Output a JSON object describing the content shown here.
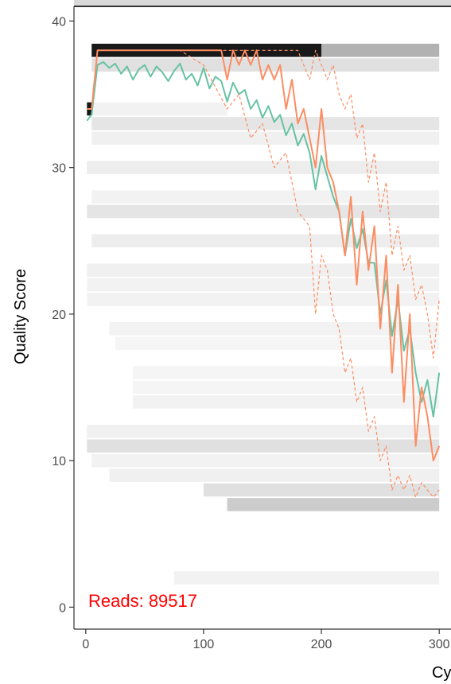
{
  "chart_data": {
    "type": "line",
    "title": "",
    "xlabel": "Cy",
    "ylabel": "Quality Score",
    "xlim": [
      -10,
      310
    ],
    "ylim": [
      -1.5,
      41
    ],
    "x_ticks": [
      0,
      100,
      200,
      300
    ],
    "x_tick_labels": [
      "0",
      "100",
      "200",
      "300"
    ],
    "y_ticks": [
      0,
      10,
      20,
      30,
      40
    ],
    "y_tick_labels": [
      "0",
      "10",
      "20",
      "30",
      "40"
    ],
    "grid": false,
    "legend": "none",
    "annotation": {
      "text": "Reads:  89517",
      "color": "#ff0000",
      "x": 0,
      "y": 0
    },
    "colors": {
      "mean": "#66c2a5",
      "median": "#fc8d62",
      "quartile": "#fc8d62",
      "heatmap": "#000000",
      "panel_border": "#333333",
      "strip": "#d9d9d9"
    },
    "series": [
      {
        "name": "",
        "role": "mean",
        "style": "solid",
        "x": [
          1,
          5,
          10,
          15,
          20,
          25,
          30,
          35,
          40,
          45,
          50,
          55,
          60,
          65,
          70,
          75,
          80,
          85,
          90,
          95,
          100,
          105,
          110,
          115,
          120,
          125,
          130,
          135,
          140,
          145,
          150,
          155,
          160,
          165,
          170,
          175,
          180,
          185,
          190,
          195,
          200,
          205,
          210,
          215,
          220,
          225,
          230,
          235,
          240,
          245,
          250,
          255,
          260,
          265,
          270,
          275,
          280,
          285,
          290,
          295,
          300
        ],
        "y": [
          33.2,
          33.6,
          37.0,
          37.2,
          36.8,
          37.1,
          36.4,
          36.9,
          36.0,
          36.7,
          37.0,
          36.2,
          36.9,
          36.5,
          35.9,
          36.6,
          37.1,
          36.0,
          36.4,
          35.6,
          36.8,
          35.4,
          36.2,
          35.9,
          34.5,
          35.8,
          35.0,
          35.3,
          34.0,
          34.6,
          33.4,
          34.2,
          33.1,
          33.6,
          32.2,
          33.0,
          31.5,
          32.3,
          31.0,
          28.5,
          30.8,
          29.4,
          28.0,
          27.0,
          24.0,
          26.5,
          24.5,
          25.8,
          23.5,
          23.5,
          20.0,
          22.3,
          18.5,
          21.0,
          17.5,
          19.0,
          16.0,
          14.0,
          15.5,
          13.0,
          16.0
        ]
      },
      {
        "name": "",
        "role": "median",
        "style": "solid",
        "x": [
          1,
          5,
          10,
          15,
          20,
          25,
          30,
          35,
          40,
          45,
          50,
          55,
          60,
          65,
          70,
          75,
          80,
          85,
          90,
          95,
          100,
          105,
          110,
          115,
          120,
          125,
          130,
          135,
          140,
          145,
          150,
          155,
          160,
          165,
          170,
          175,
          180,
          185,
          190,
          195,
          200,
          205,
          210,
          215,
          220,
          225,
          230,
          235,
          240,
          245,
          250,
          255,
          260,
          265,
          270,
          275,
          280,
          285,
          290,
          295,
          300
        ],
        "y": [
          34.0,
          34.0,
          38.0,
          38.0,
          38.0,
          38.0,
          38.0,
          38.0,
          38.0,
          38.0,
          38.0,
          38.0,
          38.0,
          38.0,
          38.0,
          38.0,
          38.0,
          38.0,
          38.0,
          38.0,
          38.0,
          38.0,
          38.0,
          38.0,
          36.0,
          38.0,
          37.0,
          38.0,
          37.0,
          38.0,
          36.0,
          37.0,
          36.0,
          37.0,
          34.0,
          36.0,
          33.0,
          34.0,
          32.0,
          30.0,
          34.0,
          30.0,
          29.0,
          27.0,
          24.0,
          28.0,
          22.0,
          27.0,
          23.0,
          26.0,
          19.0,
          24.0,
          16.0,
          22.0,
          14.0,
          20.0,
          11.0,
          15.0,
          13.0,
          10.0,
          11.0
        ]
      },
      {
        "name": "",
        "role": "quartile-upper",
        "style": "dashed",
        "x": [
          1,
          5,
          10,
          20,
          40,
          60,
          80,
          100,
          120,
          140,
          160,
          180,
          190,
          195,
          200,
          205,
          210,
          215,
          220,
          225,
          230,
          235,
          240,
          245,
          250,
          255,
          260,
          265,
          270,
          275,
          280,
          285,
          290,
          295,
          300
        ],
        "y": [
          34.0,
          34.0,
          38.0,
          38.0,
          38.0,
          38.0,
          38.0,
          38.0,
          38.0,
          38.0,
          38.0,
          38.0,
          36.0,
          38.0,
          37.0,
          36.0,
          37.0,
          35.0,
          34.0,
          35.0,
          32.0,
          33.0,
          29.0,
          31.0,
          27.0,
          29.0,
          24.0,
          26.0,
          23.0,
          24.0,
          21.0,
          22.0,
          20.0,
          17.0,
          21.0
        ]
      },
      {
        "name": "",
        "role": "quartile-lower",
        "style": "dashed",
        "x": [
          1,
          5,
          10,
          20,
          40,
          60,
          80,
          100,
          120,
          130,
          140,
          150,
          160,
          170,
          180,
          190,
          195,
          200,
          205,
          210,
          215,
          220,
          225,
          230,
          235,
          240,
          245,
          250,
          255,
          260,
          265,
          270,
          275,
          280,
          285,
          290,
          295,
          300
        ],
        "y": [
          34.0,
          34.0,
          38.0,
          38.0,
          38.0,
          38.0,
          38.0,
          37.0,
          34.0,
          35.0,
          32.0,
          33.0,
          30.0,
          31.0,
          27.0,
          26.0,
          20.0,
          24.0,
          23.0,
          20.0,
          19.0,
          16.0,
          17.0,
          14.0,
          15.0,
          12.0,
          13.0,
          10.0,
          11.0,
          8.0,
          9.0,
          8.0,
          9.0,
          7.5,
          8.5,
          8.0,
          7.5,
          8.0
        ]
      }
    ],
    "heatmap_bands": [
      {
        "x0": 5,
        "x1": 200,
        "y": 38,
        "alpha": 0.9
      },
      {
        "x0": 200,
        "x1": 300,
        "y": 38,
        "alpha": 0.3
      },
      {
        "x0": 5,
        "x1": 300,
        "y": 37,
        "alpha": 0.12
      },
      {
        "x0": 1,
        "x1": 5,
        "y": 34,
        "alpha": 0.9
      },
      {
        "x0": 1,
        "x1": 120,
        "y": 34,
        "alpha": 0.05
      },
      {
        "x0": 5,
        "x1": 300,
        "y": 33,
        "alpha": 0.1
      },
      {
        "x0": 5,
        "x1": 300,
        "y": 32,
        "alpha": 0.06
      },
      {
        "x0": 1,
        "x1": 300,
        "y": 30,
        "alpha": 0.07
      },
      {
        "x0": 5,
        "x1": 300,
        "y": 28,
        "alpha": 0.05
      },
      {
        "x0": 1,
        "x1": 300,
        "y": 27,
        "alpha": 0.1
      },
      {
        "x0": 5,
        "x1": 300,
        "y": 25,
        "alpha": 0.07
      },
      {
        "x0": 1,
        "x1": 300,
        "y": 23,
        "alpha": 0.06
      },
      {
        "x0": 1,
        "x1": 300,
        "y": 22,
        "alpha": 0.05
      },
      {
        "x0": 1,
        "x1": 300,
        "y": 21,
        "alpha": 0.05
      },
      {
        "x0": 20,
        "x1": 300,
        "y": 19,
        "alpha": 0.05
      },
      {
        "x0": 25,
        "x1": 300,
        "y": 18,
        "alpha": 0.04
      },
      {
        "x0": 40,
        "x1": 300,
        "y": 16,
        "alpha": 0.04
      },
      {
        "x0": 40,
        "x1": 300,
        "y": 15,
        "alpha": 0.04
      },
      {
        "x0": 40,
        "x1": 300,
        "y": 14,
        "alpha": 0.05
      },
      {
        "x0": 1,
        "x1": 300,
        "y": 12,
        "alpha": 0.06
      },
      {
        "x0": 1,
        "x1": 300,
        "y": 11,
        "alpha": 0.12
      },
      {
        "x0": 5,
        "x1": 300,
        "y": 10,
        "alpha": 0.05
      },
      {
        "x0": 20,
        "x1": 300,
        "y": 9,
        "alpha": 0.06
      },
      {
        "x0": 100,
        "x1": 300,
        "y": 8,
        "alpha": 0.12
      },
      {
        "x0": 120,
        "x1": 300,
        "y": 7,
        "alpha": 0.2
      },
      {
        "x0": 75,
        "x1": 300,
        "y": 2,
        "alpha": 0.05
      }
    ]
  }
}
